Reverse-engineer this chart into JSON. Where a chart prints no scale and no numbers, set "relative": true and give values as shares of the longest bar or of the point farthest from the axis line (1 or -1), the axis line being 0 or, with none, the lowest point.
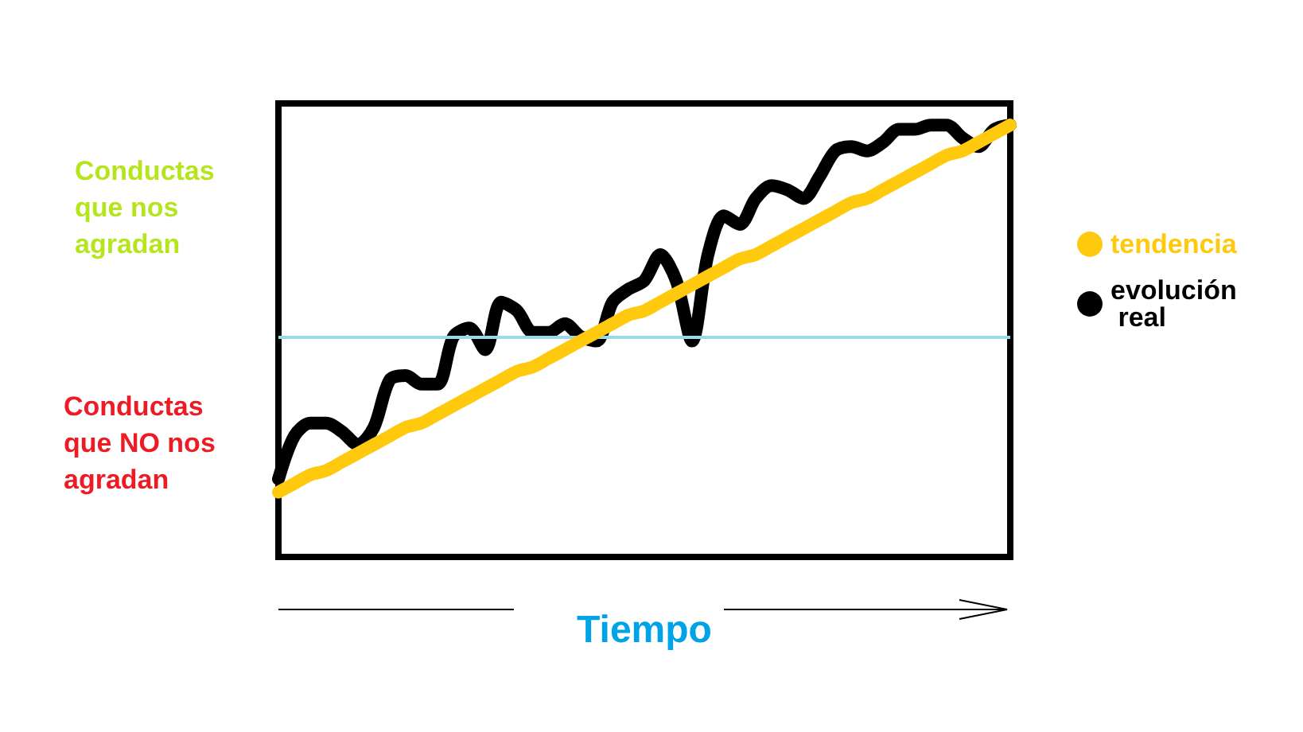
{
  "chart_data": {
    "type": "line",
    "relative": true,
    "xlabel": "Tiempo",
    "categories": [
      null,
      null,
      null,
      null,
      null,
      null,
      null,
      null,
      null,
      null,
      null,
      null,
      null,
      null,
      null,
      null,
      null,
      null,
      null,
      null,
      null,
      null,
      null,
      null,
      null,
      null,
      null,
      null,
      null,
      null,
      null,
      null,
      null,
      null,
      null,
      null,
      null,
      null,
      null,
      null,
      null,
      null,
      null,
      null,
      null,
      null,
      null
    ],
    "series": [
      {
        "name": "tendencia",
        "color": "#ffc90e",
        "values": [
          0.15,
          0.17,
          0.19,
          0.2,
          0.22,
          0.24,
          0.26,
          0.28,
          0.3,
          0.31,
          0.33,
          0.35,
          0.37,
          0.39,
          0.41,
          0.43,
          0.44,
          0.46,
          0.48,
          0.5,
          0.52,
          0.54,
          0.56,
          0.57,
          0.59,
          0.61,
          0.63,
          0.65,
          0.67,
          0.69,
          0.7,
          0.72,
          0.74,
          0.76,
          0.78,
          0.8,
          0.82,
          0.83,
          0.85,
          0.87,
          0.89,
          0.91,
          0.93,
          0.94,
          0.96,
          0.98,
          1.0
        ]
      },
      {
        "name": "evolución real",
        "color": "#000000",
        "values": [
          0.18,
          0.28,
          0.31,
          0.31,
          0.29,
          0.26,
          0.3,
          0.41,
          0.42,
          0.4,
          0.4,
          0.51,
          0.53,
          0.48,
          0.59,
          0.57,
          0.52,
          0.52,
          0.54,
          0.51,
          0.5,
          0.59,
          0.62,
          0.64,
          0.7,
          0.64,
          0.5,
          0.7,
          0.79,
          0.77,
          0.83,
          0.86,
          0.85,
          0.83,
          0.88,
          0.94,
          0.95,
          0.94,
          0.96,
          0.99,
          0.99,
          1.0,
          1.0,
          0.97,
          0.95,
          0.99,
          1.0
        ]
      }
    ],
    "ref_lines": [
      {
        "axis": "y",
        "value": 0.51,
        "color": "#99d9ea"
      }
    ],
    "annotations": [
      "Conductas que nos agradan",
      "Conductas que NO nos agradan"
    ],
    "legend": "right",
    "line_style": "solid",
    "grid": false
  }
}
